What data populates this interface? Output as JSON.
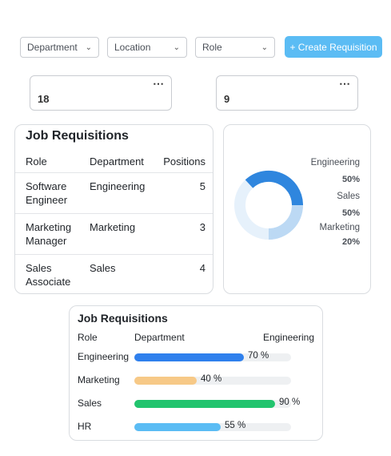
{
  "filters": {
    "department": "Department",
    "location": "Location",
    "role": "Role",
    "create_button": "+ Create Requisition"
  },
  "stats": [
    {
      "value": "18"
    },
    {
      "value": "9"
    }
  ],
  "requisitions": {
    "title": "Job Requisitions",
    "headers": {
      "role": "Role",
      "department": "Department",
      "positions": "Positions"
    },
    "rows": [
      {
        "role": "Software Engineer",
        "department": "Engineering",
        "positions": "5"
      },
      {
        "role": "Marketing Manager",
        "department": "Marketing",
        "positions": "3"
      },
      {
        "role": "Sales Associate",
        "department": "Sales",
        "positions": "4"
      }
    ]
  },
  "donut": {
    "legend": [
      {
        "name": "Engineering",
        "value": "50%",
        "percent": 50,
        "color": "#2f86de"
      },
      {
        "name": "Sales",
        "value": "50%",
        "percent": 50,
        "color": "#bcd9f4"
      },
      {
        "name": "Marketing",
        "value": "20%",
        "percent": 20,
        "color": "#e6f1fb"
      }
    ]
  },
  "bars": {
    "title": "Job Requisitions",
    "headers": {
      "role": "Role",
      "department": "Department",
      "right": "Engineering"
    },
    "items": [
      {
        "label": "Engineering",
        "percent": 70,
        "text": "70 %",
        "color": "#2f80ed"
      },
      {
        "label": "Marketing",
        "percent": 40,
        "text": "40 %",
        "color": "#f7c987"
      },
      {
        "label": "Sales",
        "percent": 90,
        "text": "90 %",
        "color": "#22c46e"
      },
      {
        "label": "HR",
        "percent": 55,
        "text": "55 %",
        "color": "#5bbcf4"
      }
    ]
  }
}
